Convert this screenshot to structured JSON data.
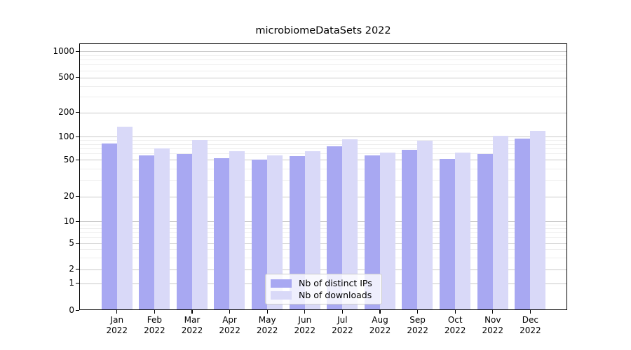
{
  "chart_data": {
    "type": "bar",
    "title": "microbiomeDataSets 2022",
    "categories": [
      "Jan 2022",
      "Feb 2022",
      "Mar 2022",
      "Apr 2022",
      "May 2022",
      "Jun 2022",
      "Jul 2022",
      "Aug 2022",
      "Sep 2022",
      "Oct 2022",
      "Nov 2022",
      "Dec 2022"
    ],
    "series": [
      {
        "name": "Nb of distinct IPs",
        "color": "#a8a8f2",
        "values": [
          83,
          57,
          60,
          53,
          51,
          56,
          76,
          57,
          68,
          52,
          60,
          95
        ]
      },
      {
        "name": "Nb of downloads",
        "color": "#d9d9f8",
        "values": [
          135,
          71,
          92,
          65,
          57,
          66,
          94,
          63,
          90,
          63,
          103,
          119
        ]
      }
    ],
    "xlabel": "",
    "ylabel": "",
    "yscale": "symlog",
    "y_ticks": [
      0,
      1,
      2,
      5,
      10,
      20,
      50,
      100,
      200,
      500,
      1000
    ],
    "ylim": [
      0,
      1230
    ],
    "grid": true,
    "legend_position": "lower center",
    "colors": {
      "major_grid": "#c9c9c9",
      "minor_grid": "#eeeeee",
      "spine": "#000000",
      "legend_border": "#cccccc"
    }
  }
}
